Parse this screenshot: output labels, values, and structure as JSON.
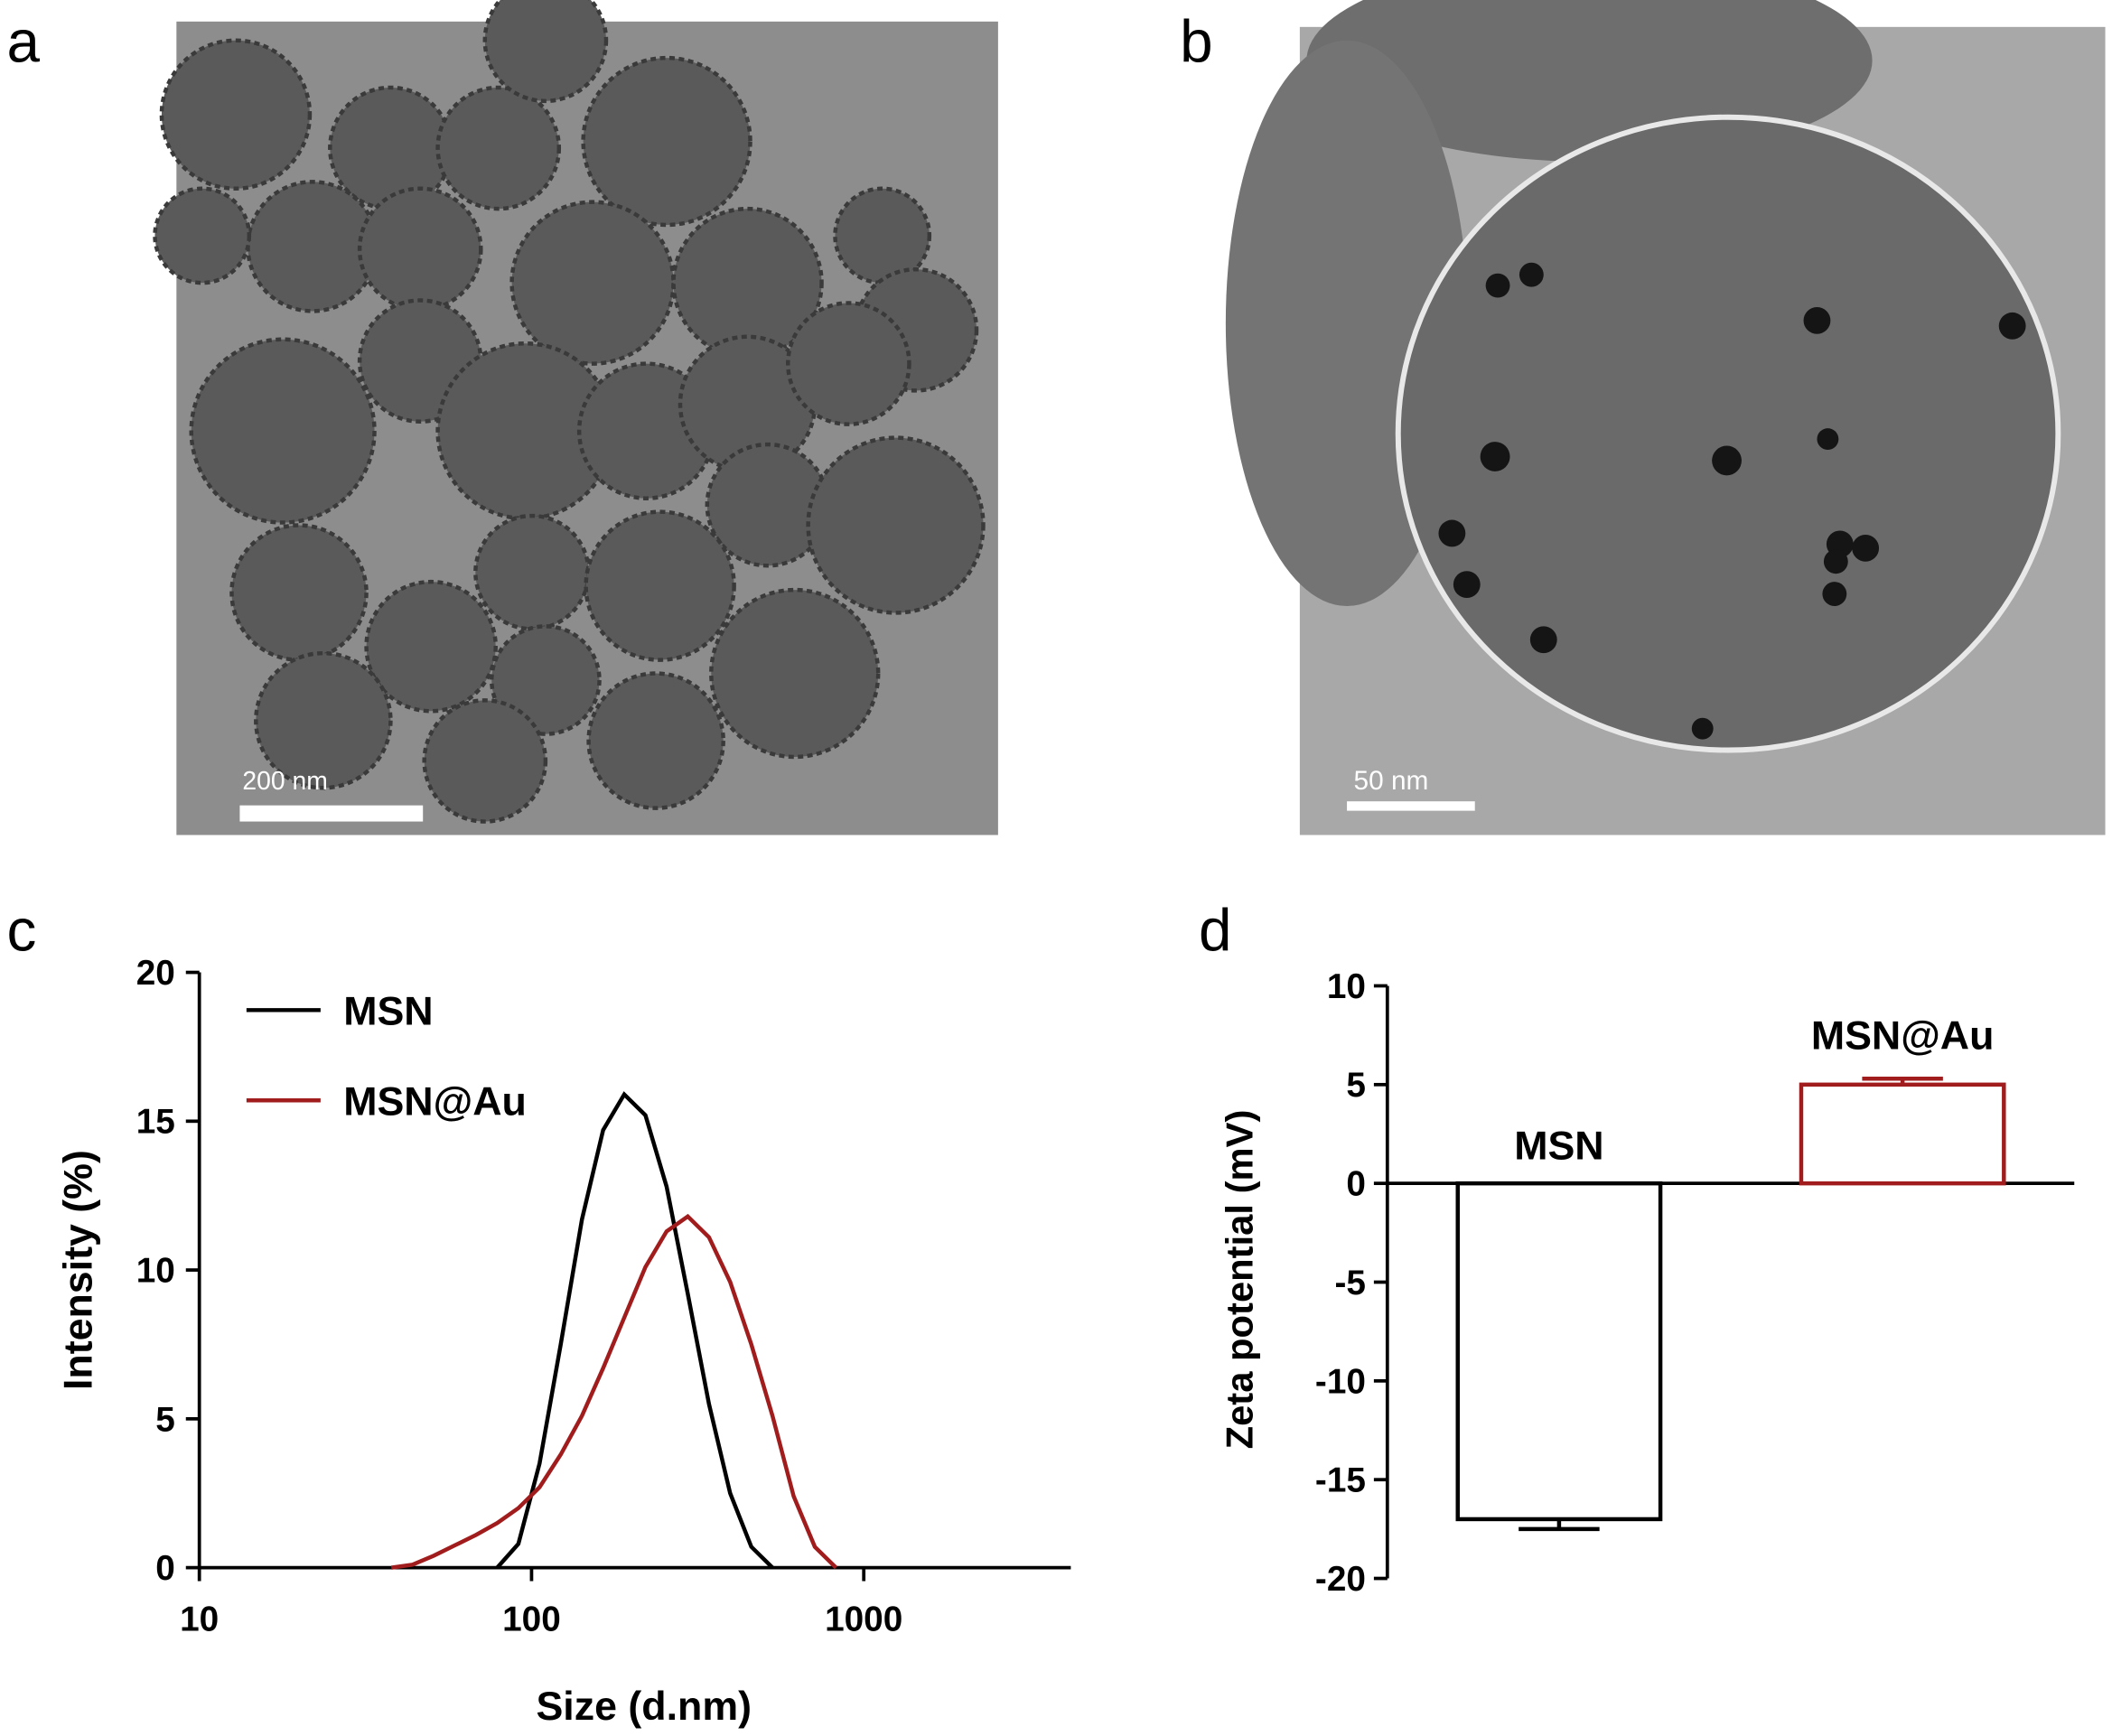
{
  "panels": [
    {
      "label": "a",
      "scale_bar": "200 nm"
    },
    {
      "label": "b",
      "scale_bar": "50 nm"
    },
    {
      "label": "c"
    },
    {
      "label": "d"
    }
  ],
  "chart_data": [
    {
      "type": "line",
      "x_label": "Size (d.nm)",
      "y_label": "Intensity (%)",
      "x_scale": "log",
      "xlim": [
        10,
        4200
      ],
      "xticks": [
        10,
        100,
        1000
      ],
      "ylim": [
        0,
        20
      ],
      "yticks": [
        0,
        5,
        10,
        15,
        20
      ],
      "legend": "upper left",
      "x": [
        37.84,
        43.82,
        50.75,
        58.77,
        68.06,
        78.82,
        91.28,
        105.7,
        122.4,
        141.8,
        164.2,
        190.1,
        220.2,
        255.0,
        295.3,
        342.0,
        396.1,
        458.7,
        531.2,
        615.1,
        712.4,
        825
      ],
      "series": [
        {
          "name": "MSN",
          "color": "#000000",
          "values": [
            null,
            null,
            null,
            null,
            null,
            0,
            0.8,
            3.5,
            7.5,
            11.7,
            14.7,
            15.9,
            15.2,
            12.8,
            9.2,
            5.5,
            2.5,
            0.7,
            0,
            null,
            null,
            null
          ]
        },
        {
          "name": "MSN@Au",
          "color": "#a11d1d",
          "values": [
            0,
            0.1,
            0.4,
            0.75,
            1.1,
            1.5,
            2.0,
            2.7,
            3.8,
            5.1,
            6.7,
            8.4,
            10.1,
            11.3,
            11.8,
            11.1,
            9.6,
            7.5,
            5.1,
            2.4,
            0.7,
            0
          ]
        }
      ]
    },
    {
      "type": "bar",
      "y_label": "Zeta potential (mV)",
      "categories": [
        "MSN",
        "MSN@Au"
      ],
      "values": [
        -17,
        5
      ],
      "errors": [
        0.5,
        0.3
      ],
      "colors": [
        "#000000",
        "#a11d1d"
      ],
      "ylim": [
        -20,
        10
      ],
      "yticks": [
        -20,
        -15,
        -10,
        -5,
        0,
        5,
        10
      ]
    }
  ]
}
